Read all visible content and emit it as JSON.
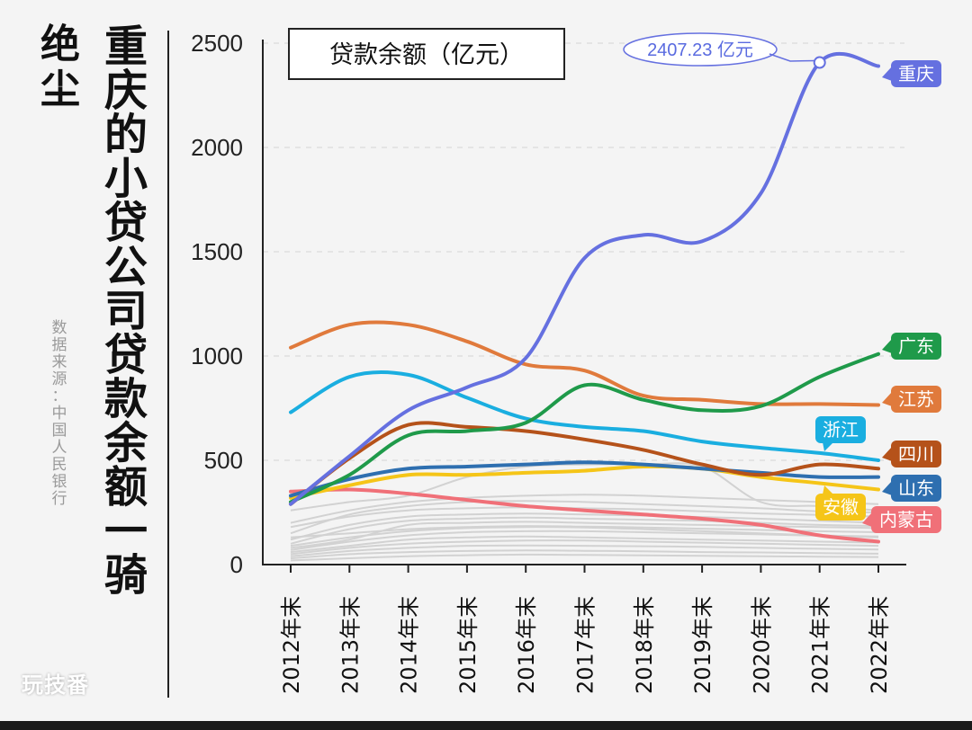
{
  "side": {
    "prefix": "绝尘",
    "title": "重庆的小贷公司贷款余额一骑",
    "source": "数据来源：中国人民银行",
    "watermark": "玩技番"
  },
  "chart_data": {
    "type": "line",
    "title": "贷款余额（亿元）",
    "categories": [
      "2012年末",
      "2013年末",
      "2014年末",
      "2015年末",
      "2016年末",
      "2017年末",
      "2018年末",
      "2019年末",
      "2020年末",
      "2021年末",
      "2022年末"
    ],
    "ylim": [
      0,
      2500
    ],
    "yticks": [
      0,
      500,
      1000,
      1500,
      2000,
      2500
    ],
    "grid": true,
    "annotation": {
      "text": "2407.23 亿元",
      "series": "重庆",
      "index": 9,
      "value": 2407.23
    },
    "series": [
      {
        "name": "重庆",
        "color": "#6570e0",
        "values": [
          290,
          520,
          740,
          850,
          990,
          1470,
          1580,
          1550,
          1780,
          2407.23,
          2390
        ]
      },
      {
        "name": "广东",
        "color": "#1f9a4a",
        "values": [
          300,
          430,
          620,
          640,
          680,
          860,
          790,
          740,
          760,
          900,
          1010
        ]
      },
      {
        "name": "江苏",
        "color": "#e07a3c",
        "values": [
          1040,
          1150,
          1150,
          1070,
          960,
          930,
          810,
          790,
          770,
          770,
          765
        ]
      },
      {
        "name": "浙江",
        "color": "#1aaee0",
        "values": [
          730,
          900,
          910,
          800,
          700,
          660,
          640,
          590,
          560,
          535,
          500
        ]
      },
      {
        "name": "四川",
        "color": "#b5521a",
        "values": [
          290,
          510,
          670,
          660,
          640,
          600,
          550,
          480,
          430,
          480,
          460
        ]
      },
      {
        "name": "山东",
        "color": "#2e6fb0",
        "values": [
          330,
          410,
          460,
          470,
          480,
          490,
          480,
          460,
          440,
          420,
          420
        ]
      },
      {
        "name": "安徽",
        "color": "#f5c518",
        "values": [
          320,
          380,
          430,
          430,
          440,
          450,
          470,
          460,
          420,
          390,
          360
        ]
      },
      {
        "name": "内蒙古",
        "color": "#f07078",
        "values": [
          350,
          360,
          340,
          310,
          280,
          260,
          240,
          220,
          190,
          140,
          110
        ]
      }
    ],
    "background_series": [
      [
        90,
        130,
        160,
        175,
        180,
        178,
        170,
        160,
        150,
        140,
        135
      ],
      [
        70,
        110,
        140,
        155,
        160,
        160,
        155,
        150,
        145,
        138,
        130
      ],
      [
        120,
        190,
        230,
        240,
        245,
        240,
        235,
        228,
        220,
        210,
        200
      ],
      [
        150,
        240,
        280,
        300,
        305,
        300,
        290,
        280,
        270,
        255,
        250
      ],
      [
        200,
        260,
        300,
        320,
        330,
        335,
        330,
        320,
        310,
        300,
        290
      ],
      [
        50,
        80,
        100,
        110,
        115,
        115,
        110,
        105,
        100,
        95,
        90
      ],
      [
        30,
        50,
        60,
        65,
        68,
        66,
        64,
        60,
        58,
        55,
        52
      ],
      [
        100,
        170,
        210,
        220,
        225,
        220,
        215,
        210,
        200,
        190,
        185
      ],
      [
        40,
        65,
        80,
        90,
        92,
        90,
        88,
        85,
        80,
        76,
        72
      ],
      [
        180,
        230,
        260,
        270,
        275,
        270,
        265,
        255,
        245,
        238,
        230
      ],
      [
        260,
        300,
        330,
        420,
        470,
        480,
        480,
        470,
        300,
        280,
        260
      ],
      [
        60,
        90,
        120,
        130,
        135,
        130,
        125,
        120,
        115,
        110,
        105
      ],
      [
        20,
        30,
        40,
        45,
        48,
        46,
        44,
        42,
        40,
        38,
        36
      ],
      [
        130,
        150,
        170,
        180,
        185,
        182,
        178,
        172,
        166,
        160,
        155
      ],
      [
        80,
        120,
        190,
        200,
        205,
        200,
        195,
        190,
        185,
        180,
        175
      ]
    ]
  }
}
